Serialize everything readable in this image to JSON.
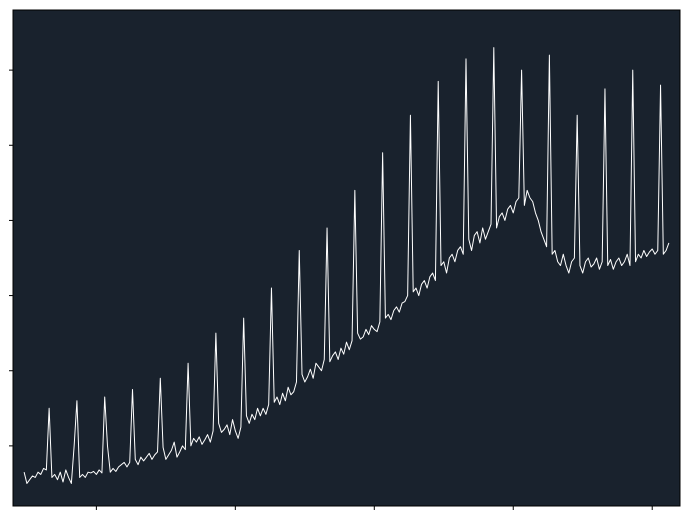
{
  "chart_data": {
    "type": "line",
    "title": "",
    "xlabel": "",
    "ylabel": "",
    "grid": false,
    "legend": "none",
    "colors": {
      "plot_background": "#19222d",
      "figure_background": "#ffffff",
      "line": "#ffffff",
      "axis": "#000000"
    },
    "xlim": [
      -4,
      236
    ],
    "ylim": [
      -0.8,
      5.8
    ],
    "x_ticks": [
      26,
      76,
      126,
      176,
      226
    ],
    "y_ticks": [
      0,
      1,
      2,
      3,
      4,
      5
    ],
    "series": [
      {
        "values": [
          -0.35,
          -0.5,
          -0.45,
          -0.4,
          -0.42,
          -0.35,
          -0.38,
          -0.3,
          -0.32,
          0.5,
          -0.42,
          -0.38,
          -0.45,
          -0.35,
          -0.48,
          -0.32,
          -0.42,
          -0.5,
          0.0,
          -0.5,
          -0.42,
          -0.38,
          -0.42,
          -0.35,
          -0.36,
          -0.34,
          -0.38,
          -0.32,
          -0.36,
          -0.3,
          0.0,
          -0.35,
          -0.3,
          -0.34,
          -0.28,
          -0.25,
          -0.22,
          -0.28,
          -0.22,
          -0.15,
          -0.18,
          -0.25,
          -0.15,
          -0.2,
          -0.15,
          -0.1,
          -0.18,
          -0.12,
          -0.08,
          -0.1,
          -0.02,
          -0.18,
          -0.12,
          -0.06,
          0.05,
          -0.15,
          -0.08,
          0.0,
          -0.05,
          0.05,
          0.0,
          0.1,
          0.05,
          0.12,
          0.02,
          0.08,
          0.15,
          0.05,
          0.2,
          0.12,
          0.3,
          0.18,
          0.22,
          0.28,
          0.15,
          0.35,
          0.2,
          0.1,
          0.25,
          0.18,
          0.4,
          0.3,
          0.42,
          0.35,
          0.5,
          0.4,
          0.5,
          0.42,
          0.55,
          0.45,
          0.58,
          0.65,
          0.55,
          0.7,
          0.6,
          0.78,
          0.68,
          0.72,
          0.85,
          0.75,
          0.95,
          0.85,
          0.92,
          1.02,
          0.9,
          1.1,
          1.05,
          1.0,
          1.15,
          1.05,
          1.12,
          1.2,
          1.25,
          1.15,
          1.3,
          1.22,
          1.38,
          1.28,
          1.4,
          1.35,
          1.5,
          1.42,
          1.45,
          1.55,
          1.48,
          1.6,
          1.55,
          1.52,
          1.65,
          1.58,
          1.7,
          1.75,
          1.68,
          1.8,
          1.85,
          1.78,
          1.9,
          1.92,
          2.0,
          1.95,
          2.05,
          2.1,
          2.0,
          2.15,
          2.2,
          2.1,
          2.25,
          2.3,
          2.2,
          2.35,
          2.4,
          2.45,
          2.3,
          2.5,
          2.55,
          2.45,
          2.6,
          2.65,
          2.55,
          2.7,
          2.75,
          2.6,
          2.8,
          2.85,
          2.7,
          2.9,
          2.75,
          2.85,
          2.95,
          3.0,
          2.9,
          3.05,
          3.1,
          3.0,
          3.15,
          3.2,
          3.1,
          3.25,
          3.3,
          3.35,
          3.2,
          3.4,
          3.3,
          3.25,
          3.1,
          3.0,
          2.85,
          2.75,
          2.65,
          2.6,
          2.55,
          2.6,
          2.45,
          2.4,
          2.55,
          2.4,
          2.3,
          2.45,
          2.5,
          2.35,
          2.4,
          2.3,
          2.45,
          2.5,
          2.38,
          2.42,
          2.5,
          2.35,
          2.45,
          2.55,
          2.4,
          2.48,
          2.35,
          2.45,
          2.5,
          2.4,
          2.45,
          2.55,
          2.4,
          2.5,
          2.45,
          2.55,
          2.5,
          2.6,
          2.52,
          2.58,
          2.62,
          2.55,
          2.6,
          2.65,
          2.55,
          2.6,
          2.7
        ]
      }
    ],
    "spikes": {
      "x": [
        9,
        19,
        29,
        39,
        49,
        59,
        69,
        79,
        89,
        99,
        109,
        119,
        129,
        139,
        149,
        159,
        169,
        179,
        189,
        199,
        209,
        219,
        229
      ],
      "y": [
        0.5,
        0.6,
        0.65,
        0.75,
        0.9,
        1.1,
        1.5,
        1.7,
        2.1,
        2.6,
        2.9,
        3.4,
        3.9,
        4.4,
        4.85,
        5.15,
        5.3,
        5.0,
        5.2,
        4.4,
        4.75,
        5.0,
        4.8
      ]
    }
  }
}
